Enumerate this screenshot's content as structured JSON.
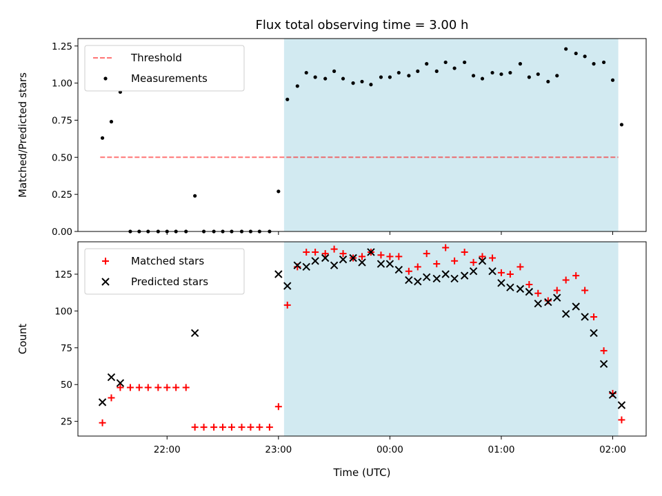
{
  "chart_data": [
    {
      "type": "scatter",
      "title": "Flux total observing time = 3.00 h",
      "xlabel": "",
      "ylabel": "Matched/Predicted stars",
      "ylim": [
        0,
        1.3
      ],
      "yticks": [
        "0.00",
        "0.25",
        "0.50",
        "0.75",
        "1.00",
        "1.25"
      ],
      "x_range_hours": [
        21.2,
        26.3
      ],
      "highlight_span_hours": [
        23.05,
        26.05
      ],
      "highlight_color": "#add8e6",
      "threshold": {
        "name": "Threshold",
        "value": 0.5,
        "x_start": 21.4,
        "x_end": 26.05,
        "color": "#ff0000",
        "style": "dashed"
      },
      "legend": {
        "position": "top-left",
        "entries": [
          "Threshold",
          "Measurements"
        ]
      },
      "series": [
        {
          "name": "Measurements",
          "color": "#000000",
          "marker": "dot",
          "x": [
            21.42,
            21.5,
            21.58,
            21.67,
            21.75,
            21.83,
            21.92,
            22.0,
            22.08,
            22.17,
            22.25,
            22.33,
            22.42,
            22.5,
            22.58,
            22.67,
            22.75,
            22.83,
            22.92,
            23.0,
            23.08,
            23.17,
            23.25,
            23.33,
            23.42,
            23.5,
            23.58,
            23.67,
            23.75,
            23.83,
            23.92,
            24.0,
            24.08,
            24.17,
            24.25,
            24.33,
            24.42,
            24.5,
            24.58,
            24.67,
            24.75,
            24.83,
            24.92,
            25.0,
            25.08,
            25.17,
            25.25,
            25.33,
            25.42,
            25.5,
            25.58,
            25.67,
            25.75,
            25.83,
            25.92,
            26.0,
            26.08
          ],
          "y": [
            0.63,
            0.74,
            0.94,
            0.0,
            0.0,
            0.0,
            0.0,
            0.0,
            0.0,
            0.0,
            0.24,
            0.0,
            0.0,
            0.0,
            0.0,
            0.0,
            0.0,
            0.0,
            0.0,
            0.27,
            0.89,
            0.98,
            1.07,
            1.04,
            1.03,
            1.08,
            1.03,
            1.0,
            1.01,
            0.99,
            1.04,
            1.04,
            1.07,
            1.05,
            1.08,
            1.13,
            1.08,
            1.14,
            1.1,
            1.14,
            1.05,
            1.03,
            1.07,
            1.06,
            1.07,
            1.13,
            1.04,
            1.06,
            1.01,
            1.05,
            1.23,
            1.2,
            1.18,
            1.13,
            1.14,
            1.02,
            0.72
          ]
        }
      ]
    },
    {
      "type": "scatter",
      "title": "",
      "xlabel": "Time (UTC)",
      "ylabel": "Count",
      "ylim": [
        15,
        147
      ],
      "yticks": [
        "25",
        "50",
        "75",
        "100",
        "125"
      ],
      "xticks": [
        "22:00",
        "23:00",
        "00:00",
        "01:00",
        "02:00"
      ],
      "x_range_hours": [
        21.2,
        26.3
      ],
      "highlight_span_hours": [
        23.05,
        26.05
      ],
      "highlight_color": "#add8e6",
      "legend": {
        "position": "top-left",
        "entries": [
          "Matched stars",
          "Predicted stars"
        ]
      },
      "series": [
        {
          "name": "Matched stars",
          "color": "#ff0000",
          "marker": "plus",
          "x": [
            21.42,
            21.5,
            21.58,
            21.67,
            21.75,
            21.83,
            21.92,
            22.0,
            22.08,
            22.17,
            22.25,
            22.33,
            22.42,
            22.5,
            22.58,
            22.67,
            22.75,
            22.83,
            22.92,
            23.0,
            23.08,
            23.17,
            23.25,
            23.33,
            23.42,
            23.5,
            23.58,
            23.67,
            23.75,
            23.83,
            23.92,
            24.0,
            24.08,
            24.17,
            24.25,
            24.33,
            24.42,
            24.5,
            24.58,
            24.67,
            24.75,
            24.83,
            24.92,
            25.0,
            25.08,
            25.17,
            25.25,
            25.33,
            25.42,
            25.5,
            25.58,
            25.67,
            25.75,
            25.83,
            25.92,
            26.0,
            26.08
          ],
          "y": [
            24,
            41,
            48,
            48,
            48,
            48,
            48,
            48,
            48,
            48,
            21,
            21,
            21,
            21,
            21,
            21,
            21,
            21,
            21,
            35,
            104,
            130,
            140,
            140,
            139,
            142,
            139,
            136,
            137,
            140,
            138,
            137,
            137,
            127,
            130,
            139,
            132,
            143,
            134,
            140,
            133,
            137,
            136,
            126,
            125,
            130,
            118,
            112,
            107,
            114,
            121,
            124,
            114,
            96,
            73,
            44,
            26
          ]
        },
        {
          "name": "Predicted stars",
          "color": "#000000",
          "marker": "x",
          "x": [
            21.42,
            21.5,
            21.58,
            22.25,
            23.0,
            23.08,
            23.17,
            23.25,
            23.33,
            23.42,
            23.5,
            23.58,
            23.67,
            23.75,
            23.83,
            23.92,
            24.0,
            24.08,
            24.17,
            24.25,
            24.33,
            24.42,
            24.5,
            24.58,
            24.67,
            24.75,
            24.83,
            24.92,
            25.0,
            25.08,
            25.17,
            25.25,
            25.33,
            25.42,
            25.5,
            25.58,
            25.67,
            25.75,
            25.83,
            25.92,
            26.0,
            26.08
          ],
          "y": [
            38,
            55,
            51,
            85,
            125,
            117,
            131,
            130,
            134,
            136,
            131,
            135,
            136,
            133,
            140,
            132,
            132,
            128,
            121,
            120,
            123,
            122,
            125,
            122,
            124,
            127,
            134,
            127,
            119,
            116,
            115,
            113,
            105,
            106,
            109,
            98,
            103,
            96,
            85,
            64,
            43,
            36
          ]
        }
      ]
    }
  ]
}
